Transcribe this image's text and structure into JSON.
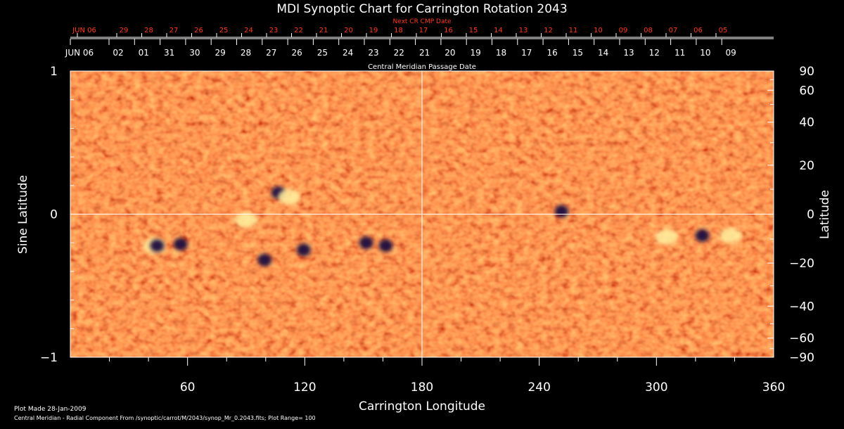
{
  "chart_data": {
    "type": "heatmap",
    "title": "MDI Synoptic Chart for Carrington Rotation 2043",
    "next_cr_label": "Next CR CMP Date",
    "next_cr_dates": [
      "JUN 06",
      "29",
      "28",
      "27",
      "26",
      "25",
      "24",
      "23",
      "22",
      "21",
      "20",
      "19",
      "18",
      "17",
      "16",
      "15",
      "14",
      "13",
      "12",
      "11",
      "10",
      "09",
      "08",
      "07",
      "06",
      "05"
    ],
    "cmp_label": "Central Meridian Passage Date",
    "cmp_dates": [
      "JUN 06",
      "02",
      "01",
      "31",
      "30",
      "29",
      "28",
      "27",
      "26",
      "25",
      "24",
      "23",
      "22",
      "21",
      "20",
      "19",
      "18",
      "17",
      "16",
      "15",
      "14",
      "13",
      "12",
      "11",
      "10",
      "09"
    ],
    "xlabel": "Carrington Longitude",
    "xlim": [
      0,
      360
    ],
    "xticks": [
      "60",
      "120",
      "180",
      "240",
      "300",
      "360"
    ],
    "ylabel_left": "Sine Latitude",
    "ylim": [
      -1,
      1
    ],
    "yticks_left": [
      "1",
      "0",
      "−1"
    ],
    "ylabel_right": "Latitude",
    "yticks_right": [
      "90",
      "60",
      "40",
      "20",
      "0",
      "−20",
      "−40",
      "−60",
      "−90"
    ],
    "crosshair": {
      "longitude": 180,
      "sine_latitude": 0
    },
    "active_regions": [
      {
        "lon": 43,
        "sinlat": -0.22,
        "polarity": "mixed"
      },
      {
        "lon": 55,
        "sinlat": -0.21,
        "polarity": "negative"
      },
      {
        "lon": 105,
        "sinlat": 0.15,
        "polarity": "negative"
      },
      {
        "lon": 112,
        "sinlat": 0.12,
        "polarity": "positive"
      },
      {
        "lon": 98,
        "sinlat": -0.32,
        "polarity": "negative"
      },
      {
        "lon": 118,
        "sinlat": -0.25,
        "polarity": "negative"
      },
      {
        "lon": 150,
        "sinlat": -0.2,
        "polarity": "negative"
      },
      {
        "lon": 160,
        "sinlat": -0.22,
        "polarity": "negative"
      },
      {
        "lon": 90,
        "sinlat": -0.04,
        "polarity": "positive"
      },
      {
        "lon": 250,
        "sinlat": 0.02,
        "polarity": "negative"
      },
      {
        "lon": 305,
        "sinlat": -0.16,
        "polarity": "positive"
      },
      {
        "lon": 322,
        "sinlat": -0.15,
        "polarity": "negative"
      },
      {
        "lon": 338,
        "sinlat": -0.15,
        "polarity": "positive"
      }
    ],
    "colors": {
      "background": "#000000",
      "field": "#ff5a10",
      "positive": "#fff1a0",
      "negative": "#1a0a40",
      "accent": "#ff3a1a"
    }
  },
  "footer": {
    "plot_made": "Plot Made 28-Jan-2009",
    "source": "Central Meridian - Radial Component From /synoptic/carrot/M/2043/synop_Mr_0.2043.fits; Plot Range=  100"
  }
}
